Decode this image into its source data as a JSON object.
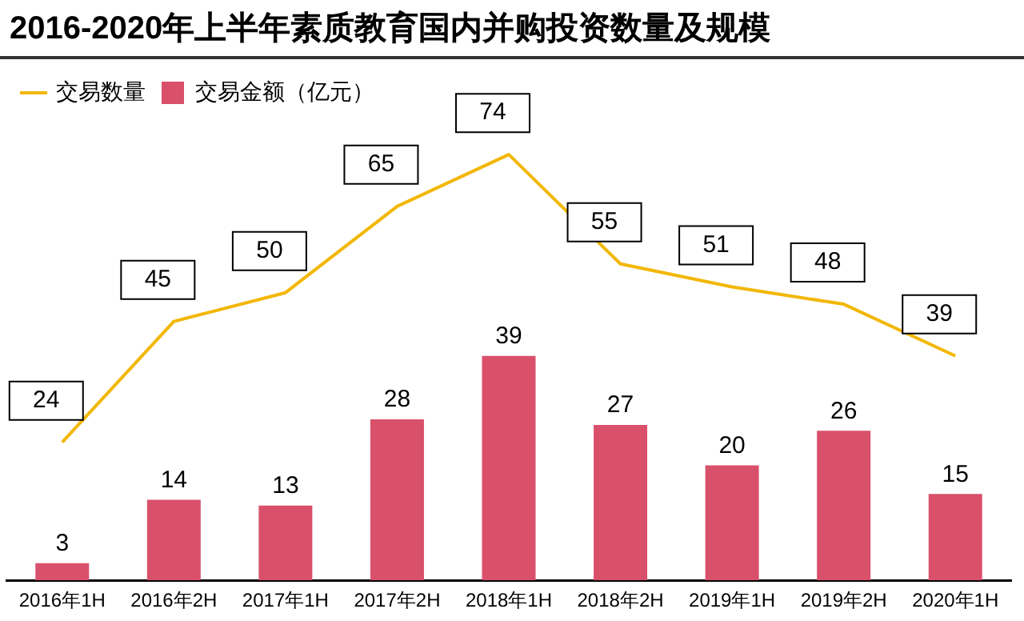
{
  "chart_data": {
    "type": "bar",
    "title": "2016-2020年上半年素质教育国内并购投资数量及规模",
    "categories": [
      "2016年1H",
      "2016年2H",
      "2017年1H",
      "2017年2H",
      "2018年1H",
      "2018年2H",
      "2019年1H",
      "2019年2H",
      "2020年1H"
    ],
    "series": [
      {
        "name": "交易数量",
        "type": "line",
        "color": "#f2b705",
        "values": [
          24,
          45,
          50,
          65,
          74,
          55,
          51,
          48,
          39
        ]
      },
      {
        "name": "交易金额（亿元）",
        "color": "#d9506b",
        "values": [
          3,
          14,
          13,
          28,
          39,
          27,
          20,
          26,
          15
        ]
      }
    ],
    "data_labels": true,
    "legend": "top left",
    "grid": false,
    "marker": "none"
  }
}
